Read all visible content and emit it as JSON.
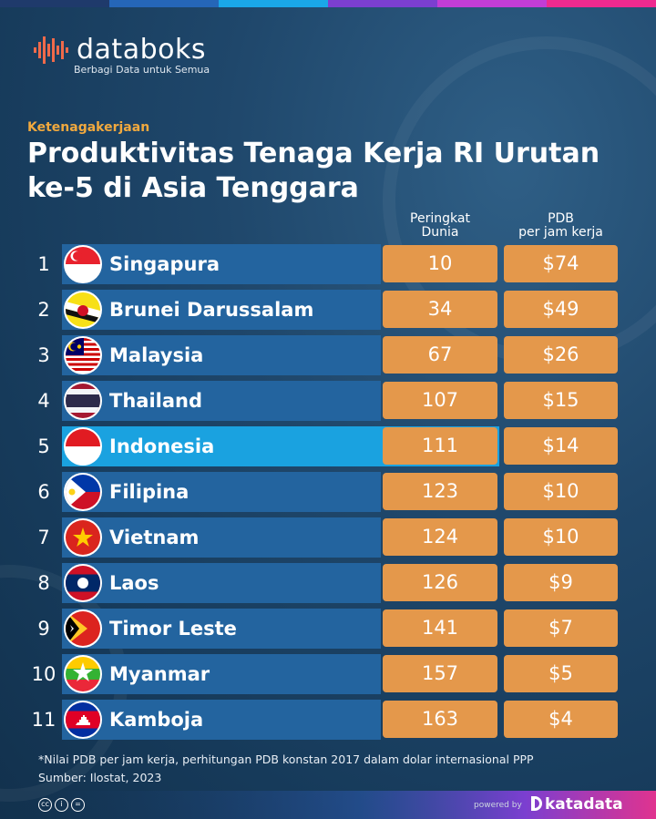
{
  "brand": {
    "name": "databoks",
    "tagline": "Berbagi Data untuk Semua"
  },
  "category": "Ketenagakerjaan",
  "title": "Produktivitas Tenaga Kerja RI Urutan ke-5 di Asia Tenggara",
  "columns": {
    "rank_line1": "Peringkat",
    "rank_line2": "Dunia",
    "pdb_line1": "PDB",
    "pdb_line2": "per jam kerja"
  },
  "chart_data": {
    "type": "table",
    "columns": [
      "Peringkat Dunia",
      "PDB per jam kerja"
    ],
    "rows": [
      {
        "no": "1",
        "country": "Singapura",
        "world_rank": "10",
        "gdp_per_hour": "$74",
        "flag": "singapore-flag-icon"
      },
      {
        "no": "2",
        "country": "Brunei Darussalam",
        "world_rank": "34",
        "gdp_per_hour": "$49",
        "flag": "brunei-flag-icon"
      },
      {
        "no": "3",
        "country": "Malaysia",
        "world_rank": "67",
        "gdp_per_hour": "$26",
        "flag": "malaysia-flag-icon"
      },
      {
        "no": "4",
        "country": "Thailand",
        "world_rank": "107",
        "gdp_per_hour": "$15",
        "flag": "thailand-flag-icon"
      },
      {
        "no": "5",
        "country": "Indonesia",
        "world_rank": "111",
        "gdp_per_hour": "$14",
        "flag": "indonesia-flag-icon",
        "highlight": true
      },
      {
        "no": "6",
        "country": "Filipina",
        "world_rank": "123",
        "gdp_per_hour": "$10",
        "flag": "philippines-flag-icon"
      },
      {
        "no": "7",
        "country": "Vietnam",
        "world_rank": "124",
        "gdp_per_hour": "$10",
        "flag": "vietnam-flag-icon"
      },
      {
        "no": "8",
        "country": "Laos",
        "world_rank": "126",
        "gdp_per_hour": "$9",
        "flag": "laos-flag-icon"
      },
      {
        "no": "9",
        "country": "Timor Leste",
        "world_rank": "141",
        "gdp_per_hour": "$7",
        "flag": "timor-leste-flag-icon"
      },
      {
        "no": "10",
        "country": "Myanmar",
        "world_rank": "157",
        "gdp_per_hour": "$5",
        "flag": "myanmar-flag-icon"
      },
      {
        "no": "11",
        "country": "Kamboja",
        "world_rank": "163",
        "gdp_per_hour": "$4",
        "flag": "cambodia-flag-icon"
      }
    ]
  },
  "footnote": "*Nilai PDB per jam kerja, perhitungan PDB konstan 2017 dalam dolar internasional PPP",
  "source": "Sumber: Ilostat, 2023",
  "footer": {
    "powered_by": "powered by",
    "katadata": "katadata"
  },
  "colors": {
    "bar": "#23649f",
    "highlight_bar": "#1aa2e0",
    "cell": "#e4984b",
    "accent": "#f1a93e"
  }
}
